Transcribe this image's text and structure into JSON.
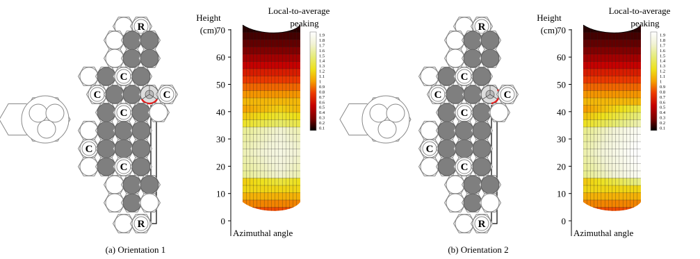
{
  "panels": [
    {
      "caption": "(a) Orientation 1",
      "y_axis_label": [
        "Height",
        "(cm)"
      ],
      "colorbar_title": [
        "Local-to-average",
        "peaking"
      ],
      "x_axis_label": "Azimuthal angle",
      "highlight_color": "#e21b1b"
    },
    {
      "caption": "(b) Orientation 2",
      "y_axis_label": [
        "Height",
        "(cm)"
      ],
      "colorbar_title": [
        "Local-to-average",
        "peaking"
      ],
      "x_axis_label": "Azimuthal angle",
      "highlight_color": "#e21b1b"
    }
  ],
  "height_ticks": [
    "0",
    "10",
    "20",
    "30",
    "40",
    "50",
    "60",
    "70"
  ],
  "colorbar_ticks": [
    "1.9",
    "1.8",
    "1.7",
    "1.6",
    "1.5",
    "1.4",
    "1.3",
    "1.2",
    "1.1",
    "1",
    "0.9",
    "0.8",
    "0.7",
    "0.6",
    "0.5",
    "0.4",
    "0.3",
    "0.2",
    "0.1"
  ],
  "assembly_labels": {
    "reflector": "R",
    "control": "C"
  },
  "colors": {
    "fuel_gray": "#7f7f7f",
    "outline": "#888888",
    "colormap": [
      "#000000",
      "#3a0000",
      "#7a0000",
      "#c40000",
      "#ec3b00",
      "#f5a000",
      "#eee019",
      "#e6ec7a",
      "#f2f3d6",
      "#ffffff"
    ]
  }
}
